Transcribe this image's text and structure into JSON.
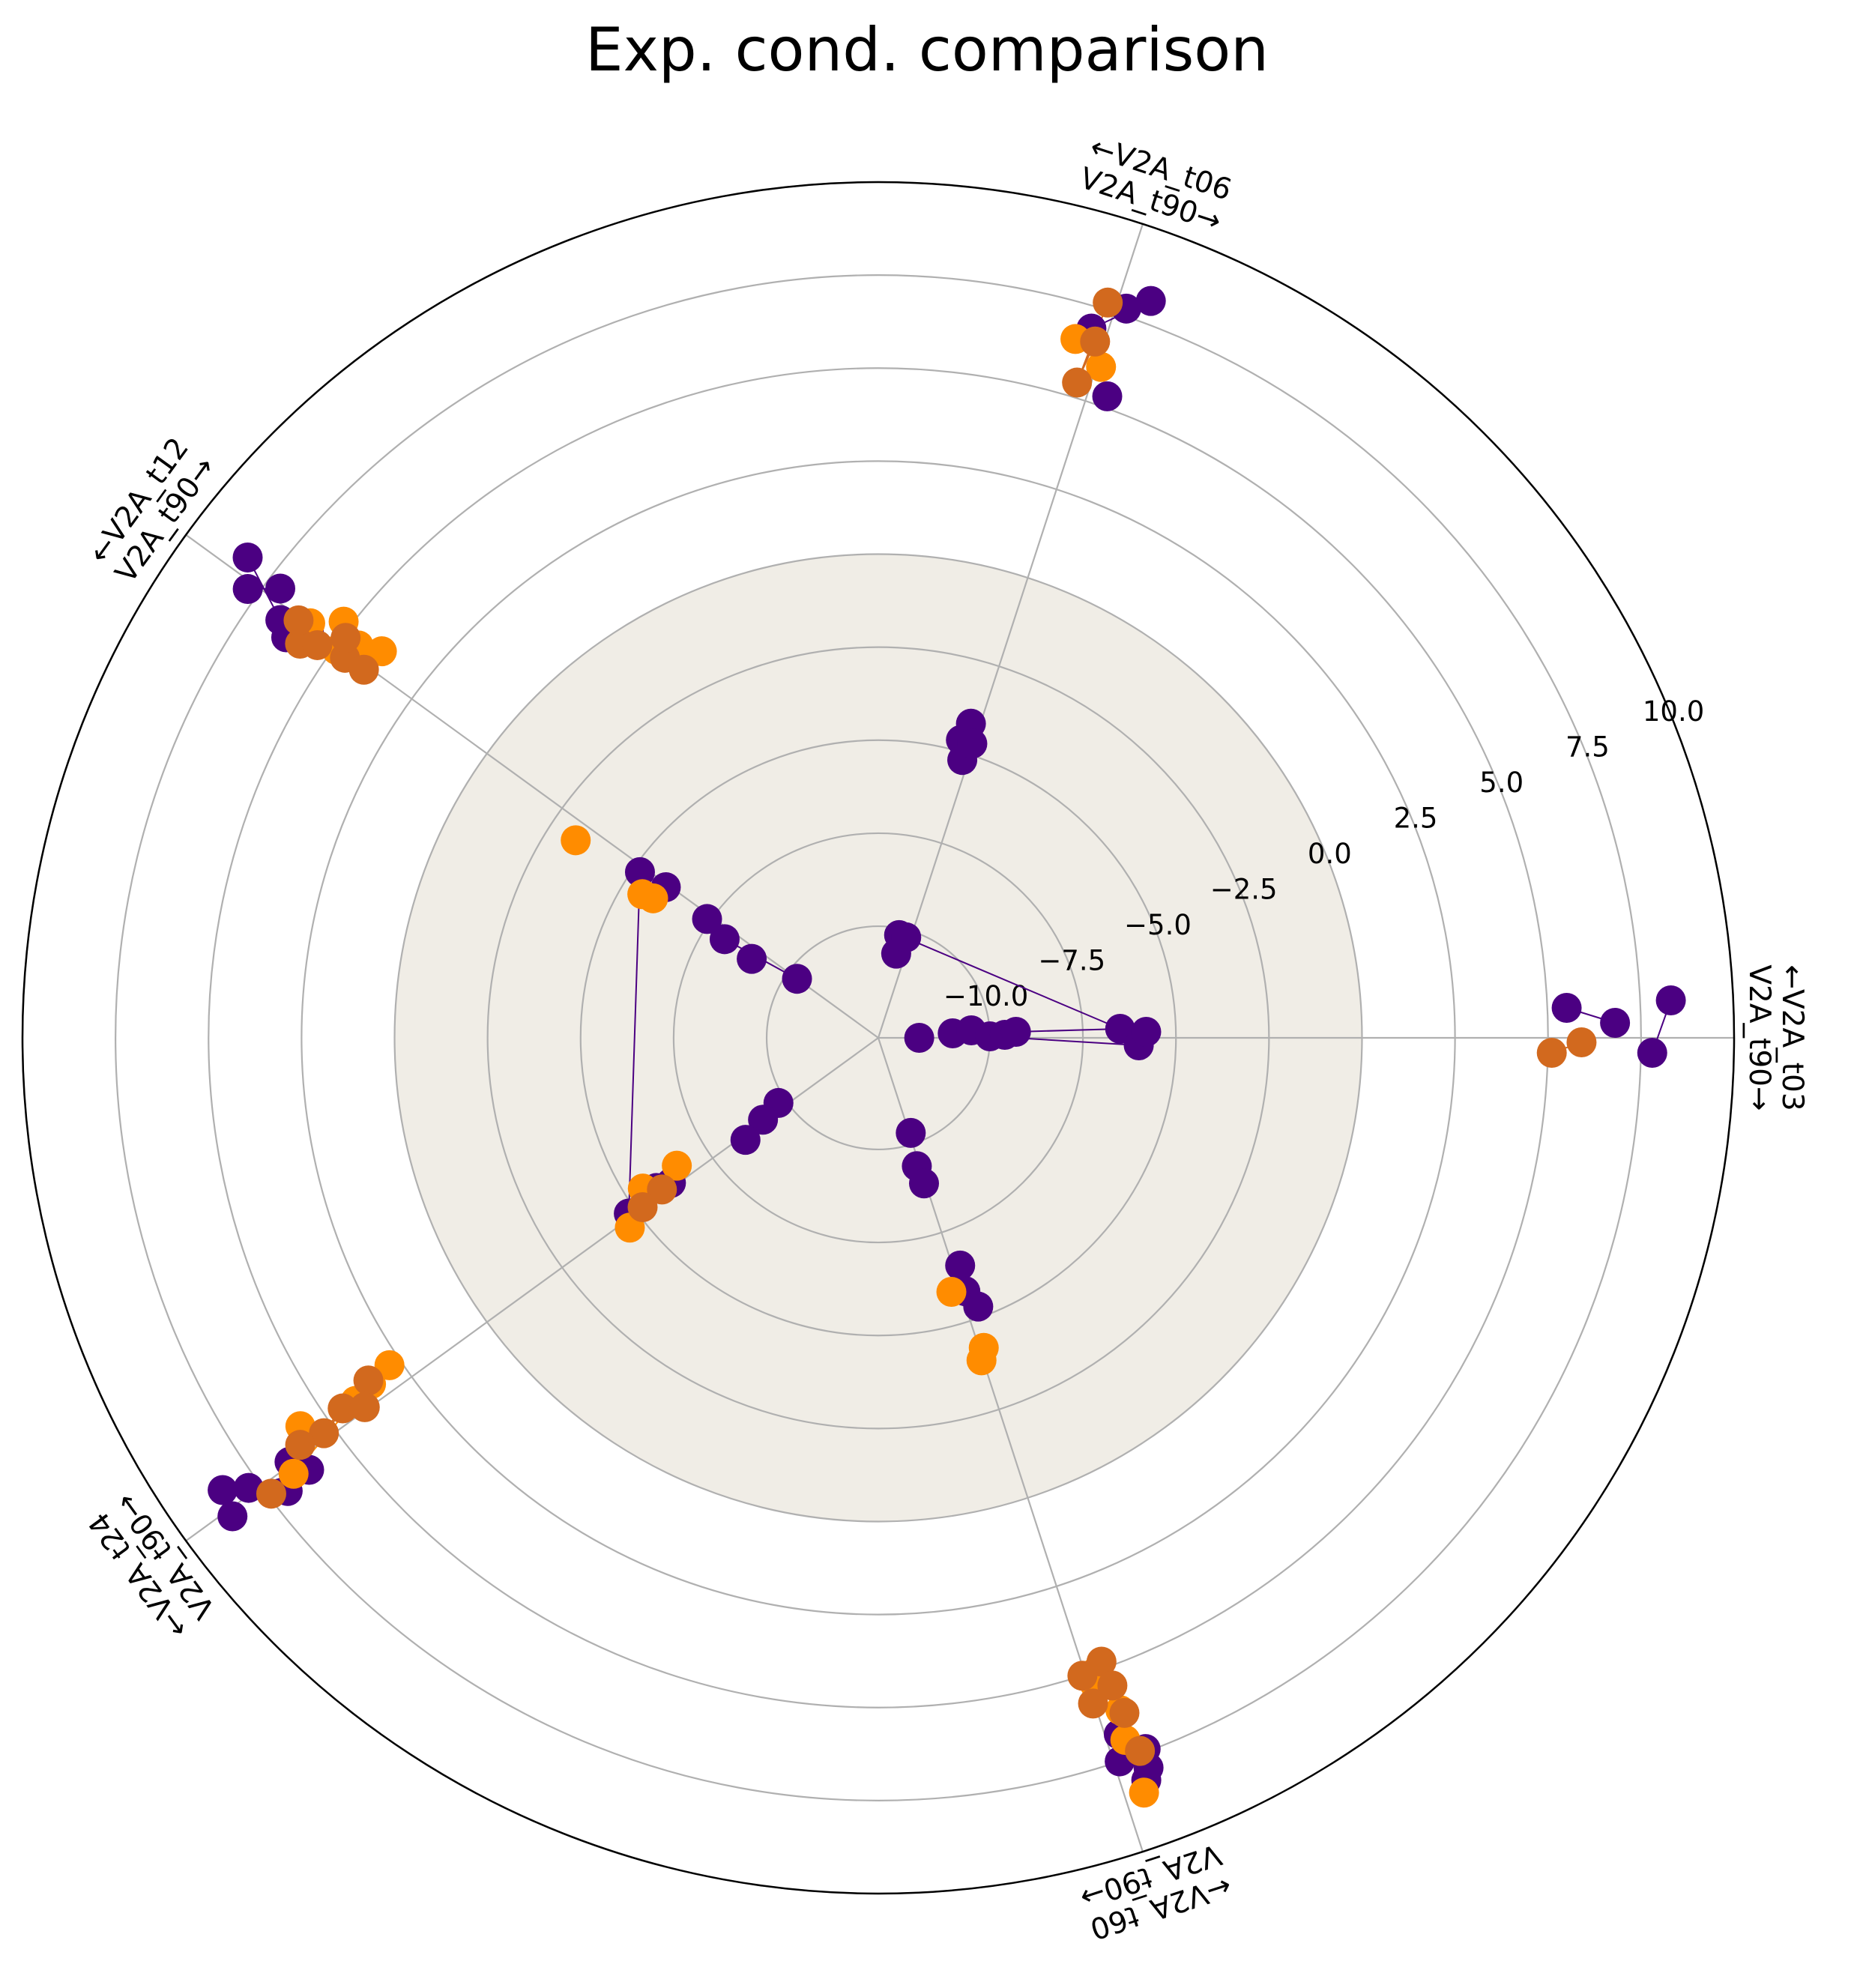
{
  "chart_data": {
    "type": "scatter",
    "subtype": "hive-plot",
    "title": "Exp. cond. comparison",
    "r_range": [
      -13,
      10
    ],
    "inner_shading_limit": 0,
    "radial_ticks": [
      -10.0,
      -7.5,
      -5.0,
      -2.5,
      0.0,
      2.5,
      5.0,
      7.5,
      10.0
    ],
    "radial_tick_labels": [
      "−10.0",
      "−7.5",
      "−5.0",
      "−2.5",
      "0.0",
      "2.5",
      "5.0",
      "7.5",
      "10.0"
    ],
    "grid": true,
    "colors": {
      "series_a": "#4b0082",
      "series_b": "#ff8c00",
      "series_c": "#d2691e",
      "inner_fill": "#f0ede6",
      "grid": "#b0b0b0"
    },
    "axes": [
      {
        "angle_deg": 0,
        "label_line1": "←V2A_t03",
        "label_line2": "V2A_t90→"
      },
      {
        "angle_deg": 72,
        "label_line1": "←V2A_t06",
        "label_line2": "V2A_t90→"
      },
      {
        "angle_deg": 144,
        "label_line1": "←V2A_t12",
        "label_line2": "V2A_t90→"
      },
      {
        "angle_deg": 216,
        "label_line1": "←V2A_t24",
        "label_line2": "V2A_t90→"
      },
      {
        "angle_deg": 288,
        "label_line1": "←V2A_t60",
        "label_line2": "V2A_t90→"
      }
    ],
    "series": [
      {
        "key": "series_a",
        "points": [
          {
            "angle": 0,
            "r": -11.9,
            "offset": 0
          },
          {
            "angle": 0,
            "r": -11.0,
            "offset": 0.3
          },
          {
            "angle": 0,
            "r": -10.5,
            "offset": 0.5
          },
          {
            "angle": 0,
            "r": -10.0,
            "offset": 0.1
          },
          {
            "angle": 0,
            "r": -9.6,
            "offset": 0.2
          },
          {
            "angle": 0,
            "r": -9.3,
            "offset": 0.4
          },
          {
            "angle": 0,
            "r": -6.5,
            "offset": 0.6
          },
          {
            "angle": 0,
            "r": -6.0,
            "offset": -0.5
          },
          {
            "angle": 0,
            "r": -5.8,
            "offset": 0.4
          },
          {
            "angle": 0,
            "r": 5.5,
            "offset": 2.0
          },
          {
            "angle": 0,
            "r": 6.8,
            "offset": 1.0
          },
          {
            "angle": 0,
            "r": 7.8,
            "offset": -1.0
          },
          {
            "angle": 0,
            "r": 8.3,
            "offset": 2.5
          },
          {
            "angle": 72,
            "r": -10.2,
            "offset": 0.8
          },
          {
            "angle": 72,
            "r": -10.7,
            "offset": 0.6
          },
          {
            "angle": 72,
            "r": -10.2,
            "offset": 0.3
          },
          {
            "angle": 72,
            "r": -4.7,
            "offset": 0.9
          },
          {
            "angle": 72,
            "r": -4.2,
            "offset": 0.6
          },
          {
            "angle": 72,
            "r": -5.2,
            "offset": 0.4
          },
          {
            "angle": 72,
            "r": -4.7,
            "offset": 0.1
          },
          {
            "angle": 72,
            "r": 5.3,
            "offset": -1.3
          },
          {
            "angle": 72,
            "r": 6.9,
            "offset": 1.1
          },
          {
            "angle": 72,
            "r": 8.1,
            "offset": -2.1
          },
          {
            "angle": 72,
            "r": 7.7,
            "offset": -0.7
          },
          {
            "angle": 144,
            "r": -10.3,
            "offset": 0
          },
          {
            "angle": 144,
            "r": -9.0,
            "offset": 0.7
          },
          {
            "angle": 144,
            "r": -8.1,
            "offset": 0.7
          },
          {
            "angle": 144,
            "r": -7.4,
            "offset": 0.3
          },
          {
            "angle": 144,
            "r": -6.0,
            "offset": 0.2
          },
          {
            "angle": 144,
            "r": -5.2,
            "offset": 0.4
          },
          {
            "angle": 144,
            "r": 5.8,
            "offset": 0.4
          },
          {
            "angle": 144,
            "r": 6.2,
            "offset": 1.6
          },
          {
            "angle": 144,
            "r": 7.1,
            "offset": -0.8
          },
          {
            "angle": 144,
            "r": 7.8,
            "offset": 0.5
          },
          {
            "angle": 144,
            "r": 8.3,
            "offset": -1.2
          },
          {
            "angle": 144,
            "r": 6.6,
            "offset": 0.9
          },
          {
            "angle": 216,
            "r": -9.8,
            "offset": -0.4
          },
          {
            "angle": 216,
            "r": -9.2,
            "offset": -0.1
          },
          {
            "angle": 216,
            "r": -8.5,
            "offset": 0.3
          },
          {
            "angle": 216,
            "r": -6.2,
            "offset": -0.3
          },
          {
            "angle": 216,
            "r": -5.8,
            "offset": -0.6
          },
          {
            "angle": 216,
            "r": -4.8,
            "offset": -0.3
          },
          {
            "angle": 216,
            "r": 6.5,
            "offset": -0.2
          },
          {
            "angle": 216,
            "r": 7.0,
            "offset": 1.3
          },
          {
            "angle": 216,
            "r": 7.8,
            "offset": -0.4
          },
          {
            "angle": 216,
            "r": 8.4,
            "offset": -1.3
          },
          {
            "angle": 216,
            "r": 8.6,
            "offset": 0.5
          },
          {
            "angle": 216,
            "r": 6.2,
            "offset": 1.0
          },
          {
            "angle": 288,
            "r": -10.3,
            "offset": 0.1
          },
          {
            "angle": 288,
            "r": -9.4,
            "offset": -0.2
          },
          {
            "angle": 288,
            "r": -8.9,
            "offset": -0.1
          },
          {
            "angle": 288,
            "r": -6.5,
            "offset": 0.5
          },
          {
            "angle": 288,
            "r": -5.8,
            "offset": 0.3
          },
          {
            "angle": 288,
            "r": -5.3,
            "offset": 0.8
          },
          {
            "angle": 288,
            "r": 6.8,
            "offset": 0.9
          },
          {
            "angle": 288,
            "r": 7.5,
            "offset": 0.4
          },
          {
            "angle": 288,
            "r": 8.2,
            "offset": 1.7
          },
          {
            "angle": 288,
            "r": 7.4,
            "offset": 2.3
          },
          {
            "angle": 288,
            "r": 7.9,
            "offset": 2.1
          }
        ]
      },
      {
        "key": "series_b",
        "points": [
          {
            "angle": 72,
            "r": 6.5,
            "offset": 1.9
          },
          {
            "angle": 72,
            "r": 6.0,
            "offset": -0.3
          },
          {
            "angle": 144,
            "r": -5.6,
            "offset": 1.5
          },
          {
            "angle": 144,
            "r": -5.9,
            "offset": 1.3
          },
          {
            "angle": 144,
            "r": -3.3,
            "offset": 1.2
          },
          {
            "angle": 144,
            "r": 4.5,
            "offset": -0.8
          },
          {
            "angle": 144,
            "r": 4.9,
            "offset": 0.3
          },
          {
            "angle": 144,
            "r": 5.2,
            "offset": -1.5
          },
          {
            "angle": 144,
            "r": 3.9,
            "offset": -1.4
          },
          {
            "angle": 144,
            "r": 5.9,
            "offset": -0.1
          },
          {
            "angle": 216,
            "r": -6.6,
            "offset": -1.0
          },
          {
            "angle": 216,
            "r": -5.5,
            "offset": -1.1
          },
          {
            "angle": 216,
            "r": -4.6,
            "offset": 0.5
          },
          {
            "angle": 216,
            "r": 2.8,
            "offset": -1.5
          },
          {
            "angle": 216,
            "r": 3.5,
            "offset": -1.2
          },
          {
            "angle": 216,
            "r": 4.1,
            "offset": -0.9
          },
          {
            "angle": 216,
            "r": 5.7,
            "offset": -1.7
          },
          {
            "angle": 216,
            "r": 6.6,
            "offset": 0.6
          },
          {
            "angle": 288,
            "r": -5.9,
            "offset": -0.6
          },
          {
            "angle": 288,
            "r": -4.2,
            "offset": 0.3
          },
          {
            "angle": 288,
            "r": -3.9,
            "offset": -0.1
          },
          {
            "angle": 288,
            "r": 5.0,
            "offset": 0.8
          },
          {
            "angle": 288,
            "r": 6.2,
            "offset": 1.5
          },
          {
            "angle": 288,
            "r": 5.3,
            "offset": 0.4
          },
          {
            "angle": 288,
            "r": 8.5,
            "offset": 1.3
          },
          {
            "angle": 288,
            "r": 7.0,
            "offset": 1.2
          }
        ]
      },
      {
        "key": "series_c",
        "points": [
          {
            "angle": 0,
            "r": 5.9,
            "offset": -0.3
          },
          {
            "angle": 0,
            "r": 5.1,
            "offset": -1.0
          },
          {
            "angle": 72,
            "r": 5.4,
            "offset": 0.9
          },
          {
            "angle": 72,
            "r": 7.7,
            "offset": 0.6
          },
          {
            "angle": 72,
            "r": 6.6,
            "offset": 0.6
          },
          {
            "angle": 144,
            "r": 5.8,
            "offset": 1.4
          },
          {
            "angle": 144,
            "r": 4.6,
            "offset": 0.4
          },
          {
            "angle": 144,
            "r": 6.2,
            "offset": 0.2
          },
          {
            "angle": 144,
            "r": 4.9,
            "offset": -0.7
          },
          {
            "angle": 144,
            "r": 5.4,
            "offset": 0.8
          },
          {
            "angle": 144,
            "r": 4.0,
            "offset": 0.3
          },
          {
            "angle": 216,
            "r": -5.9,
            "offset": -0.3
          },
          {
            "angle": 216,
            "r": -5.2,
            "offset": -0.1
          },
          {
            "angle": 216,
            "r": 3.5,
            "offset": -1.5
          },
          {
            "angle": 216,
            "r": 4.5,
            "offset": -1.0
          },
          {
            "angle": 216,
            "r": 5.3,
            "offset": -0.4
          },
          {
            "angle": 216,
            "r": 4.0,
            "offset": -0.2
          },
          {
            "angle": 216,
            "r": 7.4,
            "offset": 0.8
          },
          {
            "angle": 216,
            "r": 6.0,
            "offset": -0.7
          },
          {
            "angle": 288,
            "r": 4.8,
            "offset": 1.3
          },
          {
            "angle": 288,
            "r": 5.5,
            "offset": 1.5
          },
          {
            "angle": 288,
            "r": 6.3,
            "offset": 1.7
          },
          {
            "angle": 288,
            "r": 7.4,
            "offset": 1.9
          },
          {
            "angle": 288,
            "r": 5.0,
            "offset": -0.2
          },
          {
            "angle": 288,
            "r": 5.8,
            "offset": -0.1
          }
        ]
      }
    ],
    "edges": [
      {
        "series": "series_a",
        "from": [
          0,
          6
        ],
        "to": [
          72,
          0
        ]
      },
      {
        "series": "series_a",
        "from": [
          0,
          6
        ],
        "to": [
          0,
          5
        ]
      },
      {
        "series": "series_a",
        "from": [
          0,
          7
        ],
        "to": [
          0,
          3
        ]
      },
      {
        "series": "series_a",
        "from": [
          0,
          10
        ],
        "to": [
          0,
          9
        ]
      },
      {
        "series": "series_a",
        "from": [
          0,
          12
        ],
        "to": [
          0,
          11
        ]
      },
      {
        "series": "series_a",
        "from": [
          72,
          11
        ],
        "to": [
          72,
          10
        ]
      },
      {
        "series": "series_a",
        "from": [
          72,
          8
        ],
        "to": [
          72,
          9
        ]
      },
      {
        "series": "series_a",
        "from": [
          144,
          0
        ],
        "to": [
          144,
          2
        ]
      },
      {
        "series": "series_a",
        "from": [
          144,
          5
        ],
        "to": [
          216,
          5
        ]
      },
      {
        "series": "series_a",
        "from": [
          144,
          10
        ],
        "to": [
          144,
          11
        ]
      },
      {
        "series": "series_a",
        "from": [
          144,
          9
        ],
        "to": [
          144,
          8
        ]
      },
      {
        "series": "series_a",
        "from": [
          144,
          6
        ],
        "to": [
          144,
          7
        ]
      },
      {
        "series": "series_a",
        "from": [
          216,
          9
        ],
        "to": [
          216,
          10
        ]
      },
      {
        "series": "series_a",
        "from": [
          216,
          6
        ],
        "to": [
          216,
          7
        ]
      },
      {
        "series": "series_a",
        "from": [
          216,
          8
        ],
        "to": [
          216,
          11
        ]
      },
      {
        "series": "series_a",
        "from": [
          288,
          6
        ],
        "to": [
          288,
          8
        ]
      },
      {
        "series": "series_a",
        "from": [
          288,
          7
        ],
        "to": [
          288,
          10
        ]
      },
      {
        "series": "series_b",
        "from": [
          72,
          0
        ],
        "to": [
          72,
          1
        ]
      },
      {
        "series": "series_b",
        "from": [
          144,
          3
        ],
        "to": [
          144,
          4
        ]
      },
      {
        "series": "series_b",
        "from": [
          144,
          5
        ],
        "to": [
          144,
          6
        ]
      },
      {
        "series": "series_b",
        "from": [
          216,
          3
        ],
        "to": [
          216,
          4
        ]
      },
      {
        "series": "series_b",
        "from": [
          216,
          5
        ],
        "to": [
          216,
          7
        ]
      },
      {
        "series": "series_b",
        "from": [
          288,
          3
        ],
        "to": [
          288,
          4
        ]
      },
      {
        "series": "series_b",
        "from": [
          288,
          6
        ],
        "to": [
          288,
          7
        ]
      },
      {
        "series": "series_c",
        "from": [
          0,
          0
        ],
        "to": [
          0,
          1
        ]
      },
      {
        "series": "series_c",
        "from": [
          72,
          0
        ],
        "to": [
          72,
          1
        ]
      },
      {
        "series": "series_c",
        "from": [
          72,
          2
        ],
        "to": [
          72,
          0
        ]
      },
      {
        "series": "series_c",
        "from": [
          144,
          0
        ],
        "to": [
          144,
          2
        ]
      },
      {
        "series": "series_c",
        "from": [
          144,
          1
        ],
        "to": [
          144,
          5
        ]
      },
      {
        "series": "series_c",
        "from": [
          216,
          2
        ],
        "to": [
          216,
          4
        ]
      },
      {
        "series": "series_c",
        "from": [
          216,
          6
        ],
        "to": [
          216,
          3
        ]
      },
      {
        "series": "series_c",
        "from": [
          288,
          0
        ],
        "to": [
          288,
          4
        ]
      },
      {
        "series": "series_c",
        "from": [
          288,
          1
        ],
        "to": [
          288,
          5
        ]
      }
    ]
  }
}
